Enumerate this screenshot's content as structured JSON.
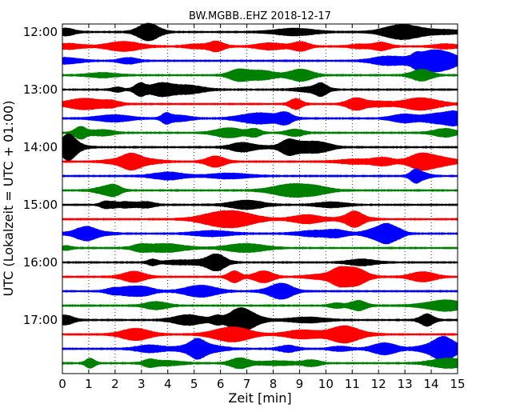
{
  "chart_data": {
    "type": "line",
    "title": "BW.MGBB..EHZ 2018-12-17",
    "xlabel": "Zeit  [min]",
    "ylabel": "UTC (Lokalzeit = UTC + 01:00)",
    "xlim": [
      0,
      15
    ],
    "x_ticks": [
      "0",
      "1",
      "2",
      "3",
      "4",
      "5",
      "6",
      "7",
      "8",
      "9",
      "10",
      "11",
      "12",
      "13",
      "14",
      "15"
    ],
    "y_ticks": [
      "12:00",
      "13:00",
      "14:00",
      "15:00",
      "16:00",
      "17:00"
    ],
    "grid": "vertical dotted",
    "trace_colors": [
      "#000000",
      "#ff0000",
      "#0000ff",
      "#008000"
    ],
    "traces": [
      {
        "start": "12:00",
        "end_min": 15
      },
      {
        "start": "12:15",
        "end_min": 15
      },
      {
        "start": "12:30",
        "end_min": 15
      },
      {
        "start": "12:45",
        "end_min": 15
      },
      {
        "start": "13:00",
        "end_min": 15
      },
      {
        "start": "13:15",
        "end_min": 15
      },
      {
        "start": "13:30",
        "end_min": 15
      },
      {
        "start": "13:45",
        "end_min": 15
      },
      {
        "start": "14:00",
        "end_min": 15
      },
      {
        "start": "14:15",
        "end_min": 15
      },
      {
        "start": "14:30",
        "end_min": 15
      },
      {
        "start": "14:45",
        "end_min": 15
      },
      {
        "start": "15:00",
        "end_min": 15
      },
      {
        "start": "15:15",
        "end_min": 15
      },
      {
        "start": "15:30",
        "end_min": 15
      },
      {
        "start": "15:45",
        "end_min": 15
      },
      {
        "start": "16:00",
        "end_min": 15
      },
      {
        "start": "16:15",
        "end_min": 15
      },
      {
        "start": "16:30",
        "end_min": 15
      },
      {
        "start": "16:45",
        "end_min": 15
      },
      {
        "start": "17:00",
        "end_min": 15
      },
      {
        "start": "17:15",
        "end_min": 15
      },
      {
        "start": "17:30",
        "end_min": 15
      },
      {
        "start": "17:45",
        "end_min": 15
      }
    ]
  }
}
